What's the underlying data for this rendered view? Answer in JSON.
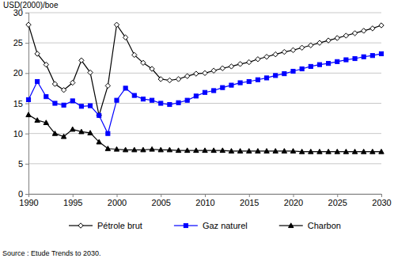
{
  "chart_data": {
    "type": "line",
    "y_label": "USD(2000)/boe",
    "source": "Source : Etude Trends to 2030.",
    "x": [
      1990,
      1991,
      1992,
      1993,
      1994,
      1995,
      1996,
      1997,
      1998,
      1999,
      2000,
      2001,
      2002,
      2003,
      2004,
      2005,
      2006,
      2007,
      2008,
      2009,
      2010,
      2011,
      2012,
      2013,
      2014,
      2015,
      2016,
      2017,
      2018,
      2019,
      2020,
      2021,
      2022,
      2023,
      2024,
      2025,
      2026,
      2027,
      2028,
      2029,
      2030
    ],
    "xlim": [
      1990,
      2030
    ],
    "xticks": [
      1990,
      1995,
      2000,
      2005,
      2010,
      2015,
      2020,
      2025,
      2030
    ],
    "ylim": [
      0,
      30
    ],
    "yticks": [
      0,
      5,
      10,
      15,
      20,
      25,
      30
    ],
    "grid": true,
    "legend": "bottom",
    "series": [
      {
        "name": "Pétrole brut",
        "color": "#000000",
        "marker": "diamond",
        "values": [
          28.0,
          23.2,
          21.4,
          18.2,
          17.2,
          18.4,
          22.1,
          20.1,
          13.0,
          17.9,
          28.0,
          25.9,
          23.0,
          21.7,
          20.7,
          19.0,
          18.8,
          19.0,
          19.5,
          19.9,
          20.0,
          20.4,
          20.8,
          21.1,
          21.5,
          21.8,
          22.3,
          22.7,
          23.1,
          23.5,
          23.8,
          24.2,
          24.6,
          25.0,
          25.4,
          25.8,
          26.2,
          26.6,
          27.0,
          27.4,
          27.9
        ]
      },
      {
        "name": "Gaz naturel",
        "color": "#0000ff",
        "marker": "square",
        "values": [
          15.6,
          18.6,
          16.1,
          15.0,
          14.7,
          15.4,
          14.5,
          14.6,
          13.0,
          10.0,
          15.5,
          17.5,
          16.3,
          15.7,
          15.5,
          15.0,
          14.8,
          15.1,
          15.5,
          16.2,
          16.8,
          17.1,
          17.6,
          18.0,
          18.4,
          18.6,
          18.9,
          19.2,
          19.6,
          19.9,
          20.3,
          20.7,
          21.1,
          21.4,
          21.6,
          21.9,
          22.2,
          22.4,
          22.7,
          22.9,
          23.2
        ]
      },
      {
        "name": "Charbon",
        "color": "#000000",
        "marker": "triangle",
        "values": [
          13.1,
          12.2,
          11.8,
          10.0,
          9.5,
          10.7,
          10.3,
          10.1,
          8.6,
          7.5,
          7.4,
          7.3,
          7.3,
          7.3,
          7.4,
          7.3,
          7.3,
          7.2,
          7.2,
          7.2,
          7.2,
          7.2,
          7.2,
          7.1,
          7.1,
          7.1,
          7.1,
          7.1,
          7.1,
          7.1,
          7.1,
          7.0,
          7.0,
          7.0,
          7.0,
          7.0,
          7.0,
          7.0,
          7.0,
          7.0,
          7.0
        ]
      }
    ]
  }
}
